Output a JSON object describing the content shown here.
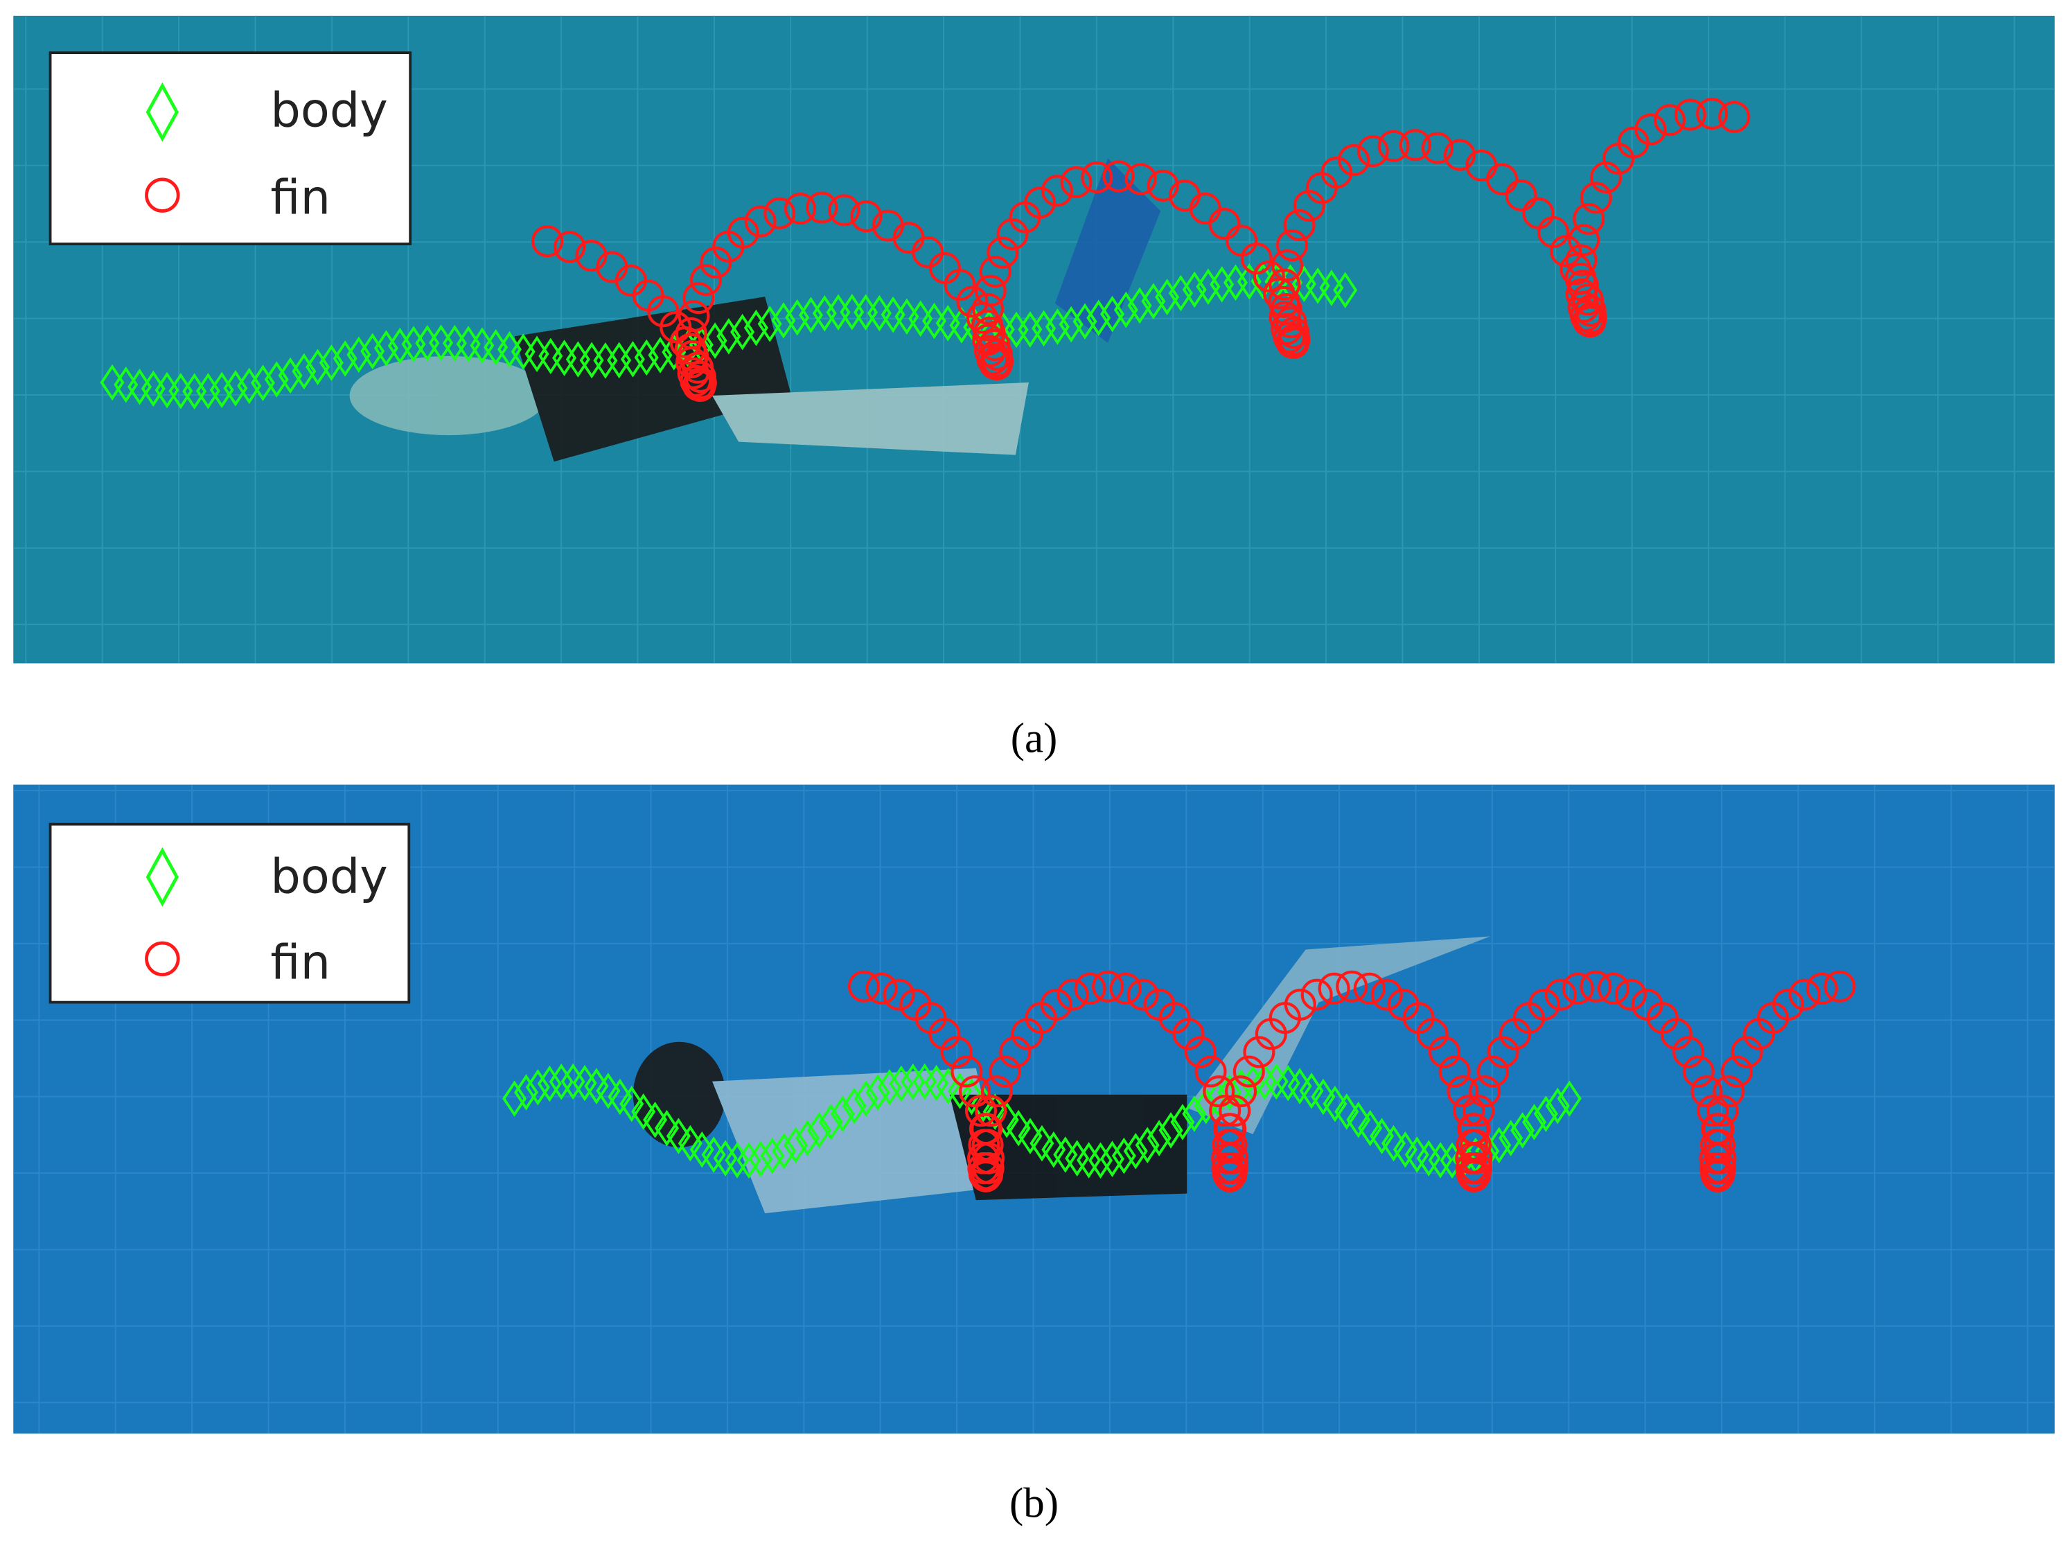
{
  "figures": [
    {
      "legend": {
        "items": [
          "body",
          "fin"
        ]
      },
      "caption": "(a)"
    },
    {
      "legend": {
        "items": [
          "body",
          "fin"
        ]
      },
      "caption": "(b)"
    }
  ]
}
